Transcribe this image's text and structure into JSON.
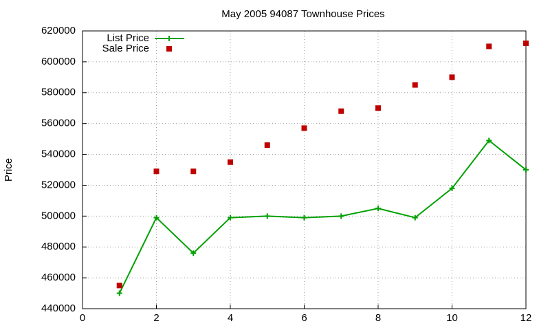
{
  "chart_data": {
    "type": "line",
    "title": "May 2005 94087 Townhouse Prices",
    "ylabel": "Price",
    "x": [
      1,
      2,
      3,
      4,
      5,
      6,
      7,
      8,
      9,
      10,
      11,
      12
    ],
    "series": [
      {
        "name": "List Price",
        "color": "#00a000",
        "line": true,
        "marker": "plus",
        "values": [
          450000,
          499000,
          476000,
          499000,
          500000,
          499000,
          500000,
          505000,
          499000,
          518000,
          549000,
          530000
        ]
      },
      {
        "name": "Sale Price",
        "color": "#c00000",
        "line": false,
        "marker": "square",
        "values": [
          455000,
          529000,
          529000,
          535000,
          546000,
          557000,
          568000,
          570000,
          585000,
          590000,
          610000,
          612000
        ]
      }
    ],
    "xlim": [
      0,
      12
    ],
    "xticks": [
      0,
      2,
      4,
      6,
      8,
      10,
      12
    ],
    "ylim": [
      440000,
      620000
    ],
    "yticks": [
      440000,
      460000,
      480000,
      500000,
      520000,
      540000,
      560000,
      580000,
      600000,
      620000
    ],
    "grid": true,
    "legend": "top-left"
  }
}
